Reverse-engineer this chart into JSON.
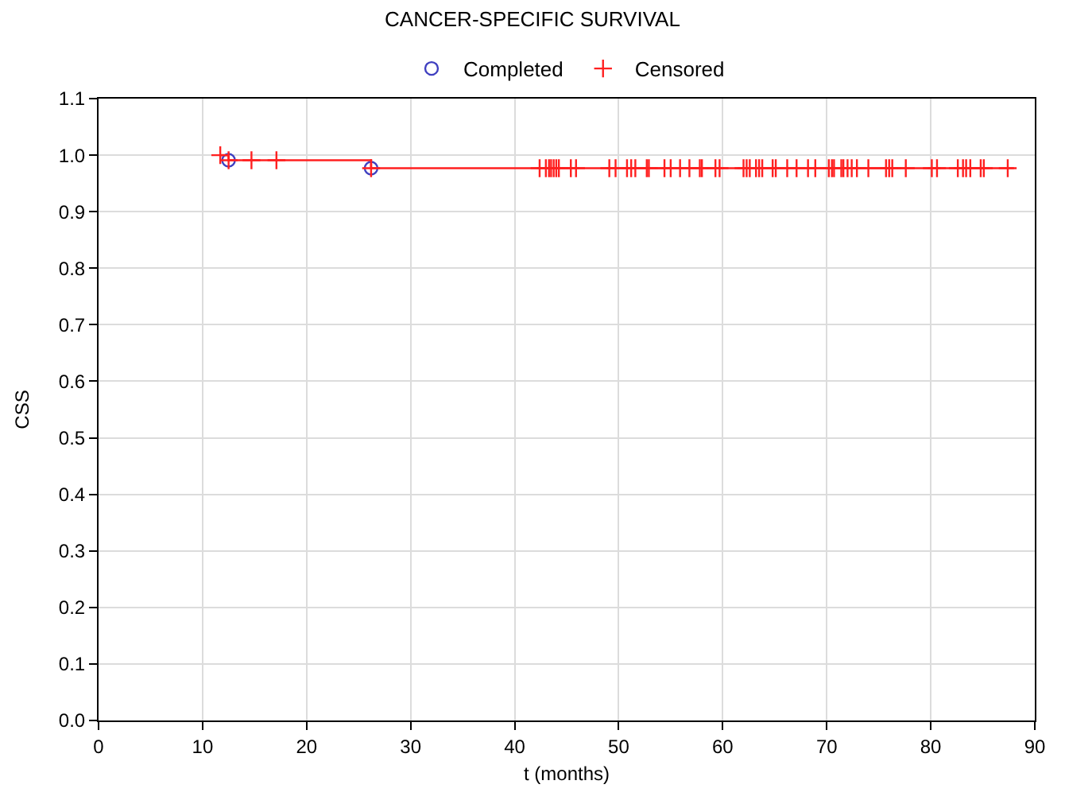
{
  "chart_data": {
    "type": "step",
    "title": "CANCER-SPECIFIC SURVIVAL",
    "xlabel": "t (months)",
    "ylabel": "CSS",
    "xlim": [
      0,
      90
    ],
    "xticks": [
      0,
      10,
      20,
      30,
      40,
      50,
      60,
      70,
      80,
      90
    ],
    "ylim": [
      0,
      1.1
    ],
    "yticks": [
      {
        "value": 0,
        "label": "0.0"
      },
      0.1,
      0.2,
      0.3,
      0.4,
      0.5,
      0.6,
      0.7,
      0.8,
      0.9,
      {
        "value": 1,
        "label": "1.0"
      },
      1.1
    ],
    "grid": true,
    "legend": "top",
    "series": [
      {
        "color": "#ff2020",
        "marker": "none",
        "x": [
          11.7,
          12.5,
          26.2,
          88
        ],
        "values": [
          1.0,
          0.991,
          0.977,
          0.977
        ]
      },
      {
        "type": "scatter",
        "name": "Completed",
        "color": "#4040c0",
        "marker": "circle",
        "x": [
          12.5,
          26.2
        ],
        "values": [
          0.991,
          0.977
        ]
      },
      {
        "type": "scatter",
        "name": "Censored",
        "color": "#ff2020",
        "marker": "cross",
        "x": [
          11.7,
          12.5,
          14.7,
          17.1,
          26.2,
          42.4,
          43.0,
          43.3,
          43.5,
          43.75,
          44.0,
          44.25,
          45.4,
          45.9,
          49.1,
          49.7,
          50.8,
          51.2,
          51.6,
          52.7,
          52.9,
          54.4,
          55.0,
          55.9,
          56.8,
          57.8,
          58.0,
          59.3,
          59.7,
          62.0,
          62.3,
          62.6,
          63.2,
          63.5,
          63.8,
          64.8,
          65.1,
          66.2,
          67.1,
          68.2,
          68.9,
          70.2,
          70.5,
          70.7,
          71.4,
          71.6,
          72.0,
          72.4,
          72.9,
          74.0,
          75.7,
          76.0,
          76.3,
          77.6,
          80.1,
          80.6,
          82.6,
          83.1,
          83.4,
          83.8,
          84.8,
          85.1,
          87.4
        ],
        "values": [
          1.0,
          0.991,
          0.991,
          0.991,
          0.977,
          0.977,
          0.977,
          0.977,
          0.977,
          0.977,
          0.977,
          0.977,
          0.977,
          0.977,
          0.977,
          0.977,
          0.977,
          0.977,
          0.977,
          0.977,
          0.977,
          0.977,
          0.977,
          0.977,
          0.977,
          0.977,
          0.977,
          0.977,
          0.977,
          0.977,
          0.977,
          0.977,
          0.977,
          0.977,
          0.977,
          0.977,
          0.977,
          0.977,
          0.977,
          0.977,
          0.977,
          0.977,
          0.977,
          0.977,
          0.977,
          0.977,
          0.977,
          0.977,
          0.977,
          0.977,
          0.977,
          0.977,
          0.977,
          0.977,
          0.977,
          0.977,
          0.977,
          0.977,
          0.977,
          0.977,
          0.977,
          0.977,
          0.977
        ]
      }
    ]
  }
}
